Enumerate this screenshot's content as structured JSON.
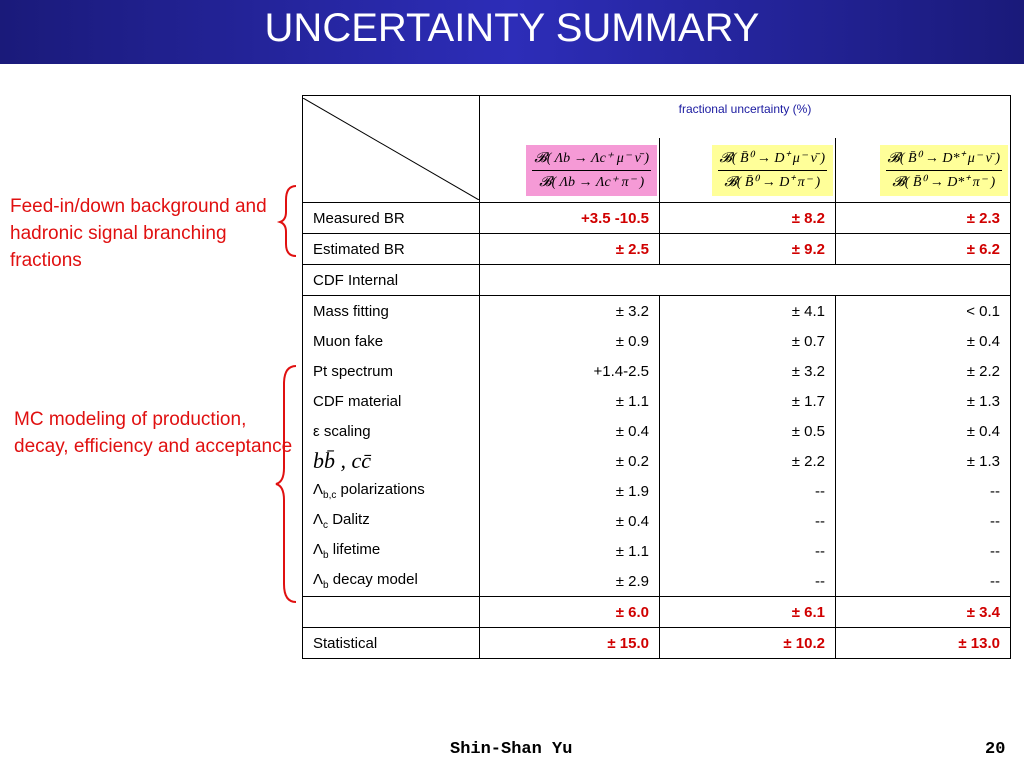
{
  "header": {
    "title": "UNCERTAINTY SUMMARY"
  },
  "side_notes": [
    "Feed-in/down background and hadronic signal branching fractions",
    "MC modeling of production, decay, efficiency and acceptance"
  ],
  "table": {
    "caption": "fractional uncertainty (%)",
    "columns": [
      {
        "numerator": "𝓑( Λb → Λc⁺ μ⁻ ν̄ )",
        "denominator": "𝓑( Λb → Λc⁺ π⁻ )",
        "color": "#f59ad6"
      },
      {
        "numerator": "𝓑( B̄⁰ → D⁺ μ⁻ ν̄ )",
        "denominator": "𝓑( B̄⁰ → D⁺ π⁻ )",
        "color": "#ffff99"
      },
      {
        "numerator": "𝓑( B̄⁰ → D*⁺ μ⁻ ν̄ )",
        "denominator": "𝓑( B̄⁰ → D*⁺ π⁻ )",
        "color": "#ffff99"
      }
    ],
    "rows": [
      {
        "label": "Measured BR",
        "values": [
          "+3.5 -10.5",
          "± 8.2",
          "± 2.3"
        ],
        "highlight": true
      },
      {
        "label": "Estimated BR",
        "values": [
          "± 2.5",
          "± 9.2",
          "± 6.2"
        ],
        "highlight": true
      },
      {
        "label": "CDF Internal",
        "values": []
      },
      {
        "label": "Mass fitting",
        "values": [
          "± 3.2",
          "± 4.1",
          "<  0.1"
        ],
        "group": true
      },
      {
        "label": "Muon fake",
        "values": [
          "± 0.9",
          "± 0.7",
          "± 0.4"
        ],
        "group": true
      },
      {
        "label": "Pt spectrum",
        "values": [
          "+1.4-2.5",
          "± 3.2",
          "± 2.2"
        ],
        "group": true
      },
      {
        "label": "CDF material",
        "values": [
          "± 1.1",
          "± 1.7",
          "± 1.3"
        ],
        "group": true
      },
      {
        "label": "ε scaling",
        "values": [
          "± 0.4",
          "± 0.5",
          "± 0.4"
        ],
        "group": true
      },
      {
        "label": "bb̄ , cc̄",
        "values": [
          "± 0.2",
          "± 2.2",
          "± 1.3"
        ],
        "group": true,
        "math": true
      },
      {
        "label": "Λ",
        "label_sub": "b,c",
        "label_rest": " polarizations",
        "values": [
          "± 1.9",
          "--",
          "--"
        ],
        "group": true
      },
      {
        "label": "Λ",
        "label_sub": "c",
        "label_rest": " Dalitz",
        "values": [
          "± 0.4",
          "--",
          "--"
        ],
        "group": true
      },
      {
        "label": "Λ",
        "label_sub": "b",
        "label_rest": " lifetime",
        "values": [
          "± 1.1",
          "--",
          "--"
        ],
        "group": true
      },
      {
        "label": "Λ",
        "label_sub": "b",
        "label_rest": " decay model",
        "values": [
          "± 2.9",
          "--",
          "--"
        ],
        "group": true
      },
      {
        "values": [
          "± 6.0",
          "± 6.1",
          "± 3.4"
        ],
        "highlight": true
      },
      {
        "label": "Statistical",
        "values": [
          "± 15.0",
          "± 10.2",
          "± 13.0"
        ],
        "highlight": true
      }
    ]
  },
  "footer": {
    "author": "Shin-Shan Yu",
    "page": "20"
  }
}
